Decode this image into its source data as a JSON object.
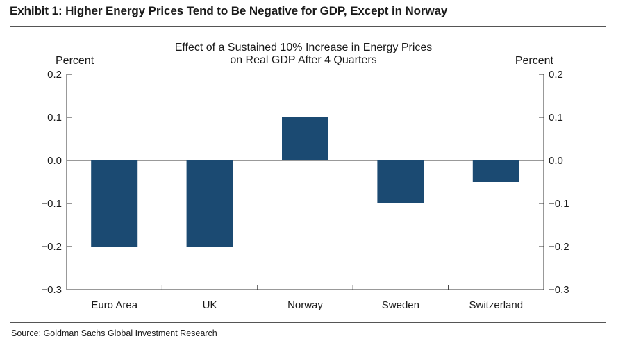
{
  "exhibit": {
    "title": "Exhibit 1: Higher Energy Prices Tend to Be Negative for GDP, Except in Norway",
    "source": "Source: Goldman Sachs Global Investment Research"
  },
  "chart_data": {
    "type": "bar",
    "title_lines": [
      "Effect of a Sustained 10% Increase in Energy Prices",
      "on Real GDP After 4 Quarters"
    ],
    "ylabel_left": "Percent",
    "ylabel_right": "Percent",
    "categories": [
      "Euro Area",
      "UK",
      "Norway",
      "Sweden",
      "Switzerland"
    ],
    "values": [
      -0.2,
      -0.2,
      0.1,
      -0.1,
      -0.05
    ],
    "ylim": [
      -0.3,
      0.2
    ],
    "yticks": [
      0.2,
      0.1,
      0.0,
      -0.1,
      -0.2,
      -0.3
    ],
    "ytick_labels": [
      "0.2",
      "0.1",
      "0.0",
      "−0.1",
      "−0.2",
      "−0.3"
    ],
    "bar_color": "#1b4a72",
    "grid": false,
    "legend": "none"
  }
}
